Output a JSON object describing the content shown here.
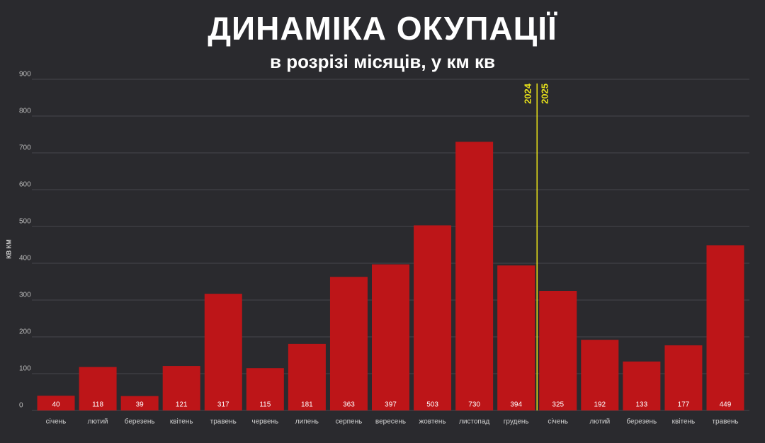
{
  "chart_data": {
    "type": "bar",
    "title": "ДИНАМІКА ОКУПАЦІЇ",
    "subtitle": "в розрізі місяців, у км кв",
    "y_label": "КВ КМ",
    "categories": [
      "січень",
      "лютий",
      "березень",
      "квітень",
      "травень",
      "червень",
      "липень",
      "серпень",
      "вересень",
      "жовтень",
      "листопад",
      "грудень",
      "січень",
      "лютий",
      "березень",
      "квітень",
      "травень"
    ],
    "values": [
      40,
      118,
      39,
      121,
      317,
      115,
      181,
      363,
      397,
      503,
      730,
      394,
      325,
      192,
      133,
      177,
      449
    ],
    "color": "#bd1518",
    "ylim": [
      0,
      900
    ],
    "yticks": [
      0,
      100,
      200,
      300,
      400,
      500,
      600,
      700,
      800,
      900
    ],
    "grid": true,
    "year_break": {
      "after": "грудень",
      "labels": [
        "2024",
        "2025"
      ],
      "color": "#e8e21a"
    }
  }
}
